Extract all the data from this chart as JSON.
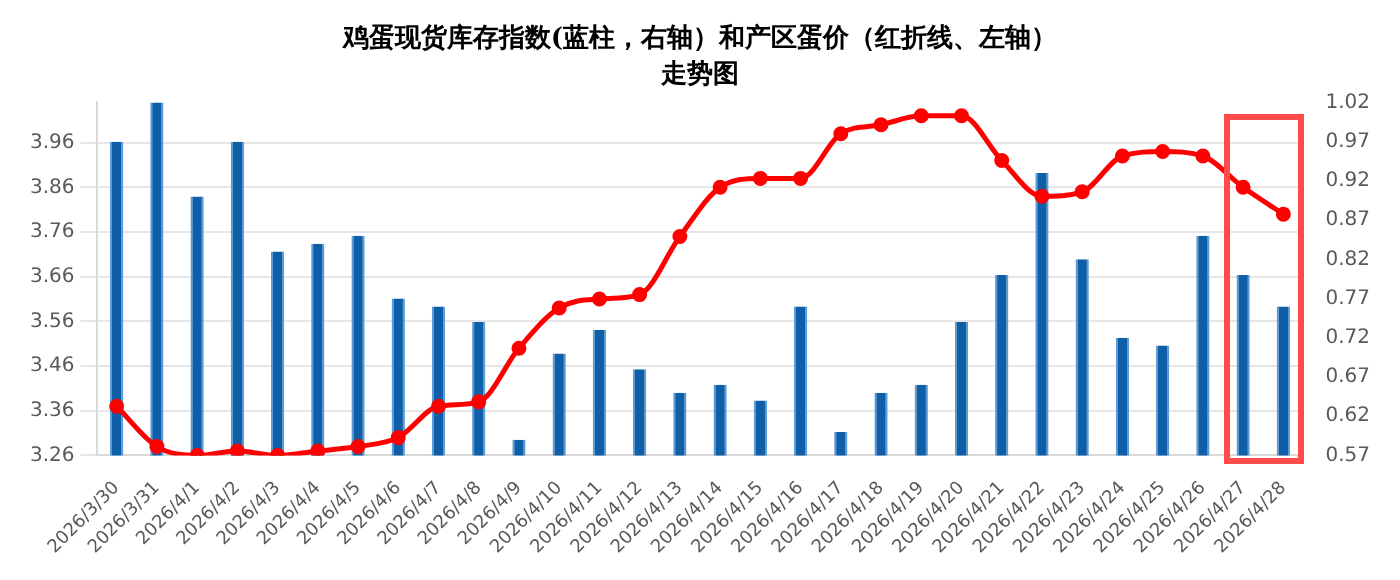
{
  "chart_data": {
    "type": "bar",
    "title": "鸡蛋现货库存指数(蓝柱，右轴）和产区蛋价（红折线、左轴）",
    "subtitle": "走势图",
    "categories": [
      "2026/3/30",
      "2026/3/31",
      "2026/4/1",
      "2026/4/2",
      "2026/4/3",
      "2026/4/4",
      "2026/4/5",
      "2026/4/6",
      "2026/4/7",
      "2026/4/8",
      "2026/4/9",
      "2026/4/10",
      "2026/4/11",
      "2026/4/12",
      "2026/4/13",
      "2026/4/14",
      "2026/4/15",
      "2026/4/16",
      "2026/4/17",
      "2026/4/18",
      "2026/4/19",
      "2026/4/20",
      "2026/4/21",
      "2026/4/22",
      "2026/4/23",
      "2026/4/24",
      "2026/4/25",
      "2026/4/26",
      "2026/4/27",
      "2026/4/28"
    ],
    "series": [
      {
        "axis": "y2",
        "color": "#0e5ea8",
        "values": [
          0.97,
          1.02,
          0.9,
          0.97,
          0.83,
          0.84,
          0.85,
          0.77,
          0.76,
          0.74,
          0.59,
          0.7,
          0.73,
          0.68,
          0.65,
          0.66,
          0.64,
          0.76,
          0.6,
          0.65,
          0.66,
          0.74,
          0.8,
          0.93,
          0.82,
          0.72,
          0.71,
          0.85,
          0.8,
          0.76
        ]
      },
      {
        "type": "line",
        "axis": "y",
        "color": "#ff0000",
        "marker": "circle",
        "values": [
          3.37,
          3.28,
          3.26,
          3.27,
          3.26,
          3.27,
          3.28,
          3.3,
          3.37,
          3.38,
          3.5,
          3.59,
          3.61,
          3.62,
          3.75,
          3.86,
          3.88,
          3.88,
          3.98,
          4.0,
          4.02,
          4.02,
          3.92,
          3.84,
          3.85,
          3.93,
          3.94,
          3.93,
          3.86,
          3.8
        ]
      }
    ],
    "ylim": [
      3.26,
      4.05
    ],
    "yticks": [
      3.26,
      3.36,
      3.46,
      3.56,
      3.66,
      3.76,
      3.86,
      3.96
    ],
    "y2lim": [
      0.57,
      1.02
    ],
    "y2ticks": [
      0.57,
      0.62,
      0.67,
      0.72,
      0.77,
      0.82,
      0.87,
      0.92,
      0.97,
      1.02
    ],
    "grid": "y",
    "legend": false
  }
}
